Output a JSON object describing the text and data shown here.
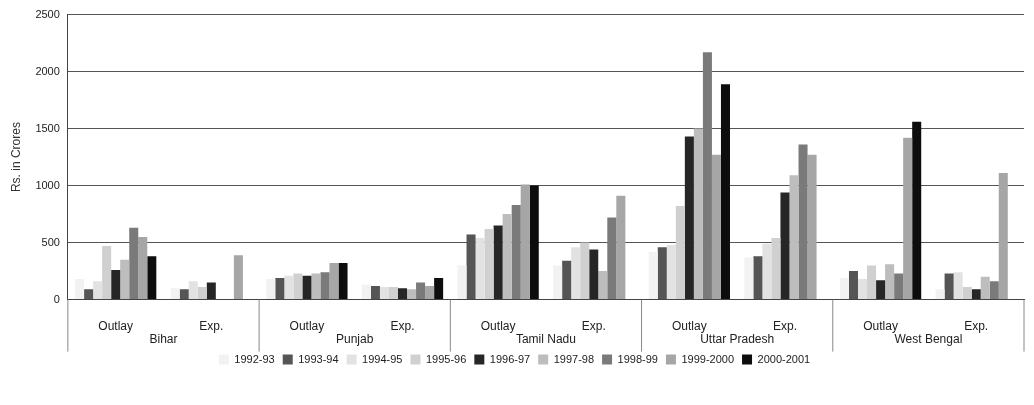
{
  "chart_data": {
    "type": "bar",
    "ylabel": "Rs. in Crores",
    "categories": [
      "Outlay",
      "Exp.",
      "Outlay",
      "Exp.",
      "Outlay",
      "Exp.",
      "Outlay",
      "Exp.",
      "Outlay",
      "Exp."
    ],
    "annotations": [
      "Bihar",
      "Punjab",
      "Tamil Nadu",
      "Uttar Pradesh",
      "West Bengal"
    ],
    "ylim": [
      0,
      2500
    ],
    "yticks": [
      0,
      500,
      1000,
      1500,
      2000,
      2500
    ],
    "grid": "y",
    "legend": "bottom",
    "series": [
      {
        "name": "1992-93",
        "color": "#f2f2f2",
        "values": [
          180,
          100,
          180,
          130,
          300,
          300,
          420,
          370,
          190,
          90
        ]
      },
      {
        "name": "1993-94",
        "color": "#555555",
        "values": [
          90,
          90,
          190,
          120,
          570,
          340,
          460,
          380,
          250,
          230
        ]
      },
      {
        "name": "1994-95",
        "color": "#e2e2e2",
        "values": [
          160,
          160,
          210,
          110,
          540,
          460,
          480,
          490,
          180,
          240
        ]
      },
      {
        "name": "1995-96",
        "color": "#d0d0d0",
        "values": [
          470,
          110,
          230,
          110,
          620,
          500,
          820,
          540,
          300,
          110
        ]
      },
      {
        "name": "1996-97",
        "color": "#262626",
        "values": [
          260,
          150,
          210,
          100,
          650,
          440,
          1430,
          940,
          170,
          90
        ]
      },
      {
        "name": "1997-98",
        "color": "#bdbdbd",
        "values": [
          350,
          null,
          230,
          90,
          750,
          250,
          1500,
          1090,
          310,
          200
        ]
      },
      {
        "name": "1998-99",
        "color": "#7a7a7a",
        "values": [
          630,
          null,
          240,
          150,
          830,
          720,
          2170,
          1360,
          230,
          160
        ]
      },
      {
        "name": "1999-2000",
        "color": "#a6a6a6",
        "values": [
          550,
          390,
          320,
          120,
          1010,
          910,
          1270,
          1270,
          1420,
          1110
        ]
      },
      {
        "name": "2000-2001",
        "color": "#0d0d0d",
        "values": [
          380,
          null,
          320,
          190,
          1000,
          null,
          1890,
          null,
          1560,
          null
        ]
      }
    ]
  }
}
